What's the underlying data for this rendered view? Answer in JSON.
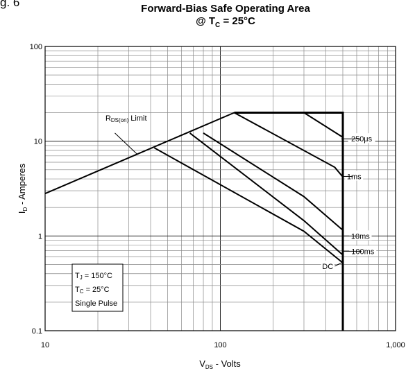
{
  "figure_label": "g. 6",
  "chart_data": {
    "type": "line",
    "title": "Forward-Bias Safe Operating Area",
    "subtitle": {
      "prefix": "@ T",
      "sub": "C",
      "suffix": " = 25°C"
    },
    "xlabel": {
      "main": "V",
      "sub": "DS",
      "rest": " - Volts"
    },
    "ylabel": {
      "main": "I",
      "sub": "D",
      "rest": " - Amperes"
    },
    "xscale": "log",
    "yscale": "log",
    "xlim": [
      10,
      1000
    ],
    "ylim": [
      0.1,
      100
    ],
    "grid": true,
    "x_ticks": [
      {
        "value": 10,
        "label": "10"
      },
      {
        "value": 100,
        "label": "100"
      },
      {
        "value": 1000,
        "label": "1,000"
      }
    ],
    "y_ticks": [
      {
        "value": 0.1,
        "label": "0.1"
      },
      {
        "value": 1,
        "label": "1"
      },
      {
        "value": 10,
        "label": "10"
      },
      {
        "value": 100,
        "label": "100"
      }
    ],
    "series": [
      {
        "name": "250μs",
        "points": [
          [
            300,
            20
          ],
          [
            500,
            11
          ]
        ]
      },
      {
        "name": "1ms",
        "points": [
          [
            120,
            20
          ],
          [
            450,
            5.3
          ],
          [
            500,
            4.2
          ]
        ]
      },
      {
        "name": "10ms",
        "points": [
          [
            80,
            12.2
          ],
          [
            300,
            2.6
          ],
          [
            500,
            1.15
          ]
        ]
      },
      {
        "name": "100ms",
        "points": [
          [
            67,
            12.2
          ],
          [
            300,
            1.45
          ],
          [
            500,
            0.63
          ]
        ]
      },
      {
        "name": "DC",
        "points": [
          [
            42,
            8.5
          ],
          [
            300,
            1.12
          ],
          [
            500,
            0.52
          ]
        ]
      }
    ],
    "limit_line": [
      [
        10,
        2.8
      ],
      [
        120,
        20
      ]
    ],
    "boundary": [
      [
        120,
        20
      ],
      [
        500,
        20
      ],
      [
        500,
        0.1
      ]
    ],
    "limit_label": {
      "main": "R",
      "sub": "DS(on)",
      "rest": " Limit"
    },
    "limit_label_point": [
      29,
      16.5
    ],
    "limit_pointer": [
      [
        25,
        12.2
      ],
      [
        33.5,
        7.3
      ]
    ],
    "series_labels": [
      {
        "text": "250μs",
        "at": [
          640,
          10.6
        ],
        "leader": [
          [
            490,
            10.6
          ],
          [
            630,
            10.6
          ]
        ]
      },
      {
        "text": "1ms",
        "at": [
          580,
          4.25
        ],
        "leader": [
          [
            500,
            4.25
          ],
          [
            570,
            4.25
          ]
        ]
      },
      {
        "text": "10ms",
        "at": [
          630,
          1.0
        ],
        "leader": [
          [
            500,
            1.0
          ],
          [
            620,
            1.0
          ]
        ]
      },
      {
        "text": "100ms",
        "at": [
          650,
          0.69
        ],
        "leader": [
          [
            500,
            0.69
          ],
          [
            640,
            0.69
          ]
        ]
      },
      {
        "text": "DC",
        "at": [
          410,
          0.48
        ],
        "leader": [
          [
            450,
            0.48
          ],
          [
            500,
            0.53
          ]
        ]
      }
    ],
    "annotation_box": [
      {
        "main": "T",
        "sub": "J",
        "rest": " = 150°C"
      },
      {
        "main": "T",
        "sub": "C",
        "rest": " = 25°C"
      },
      {
        "main": "Single Pulse",
        "sub": "",
        "rest": ""
      }
    ]
  }
}
